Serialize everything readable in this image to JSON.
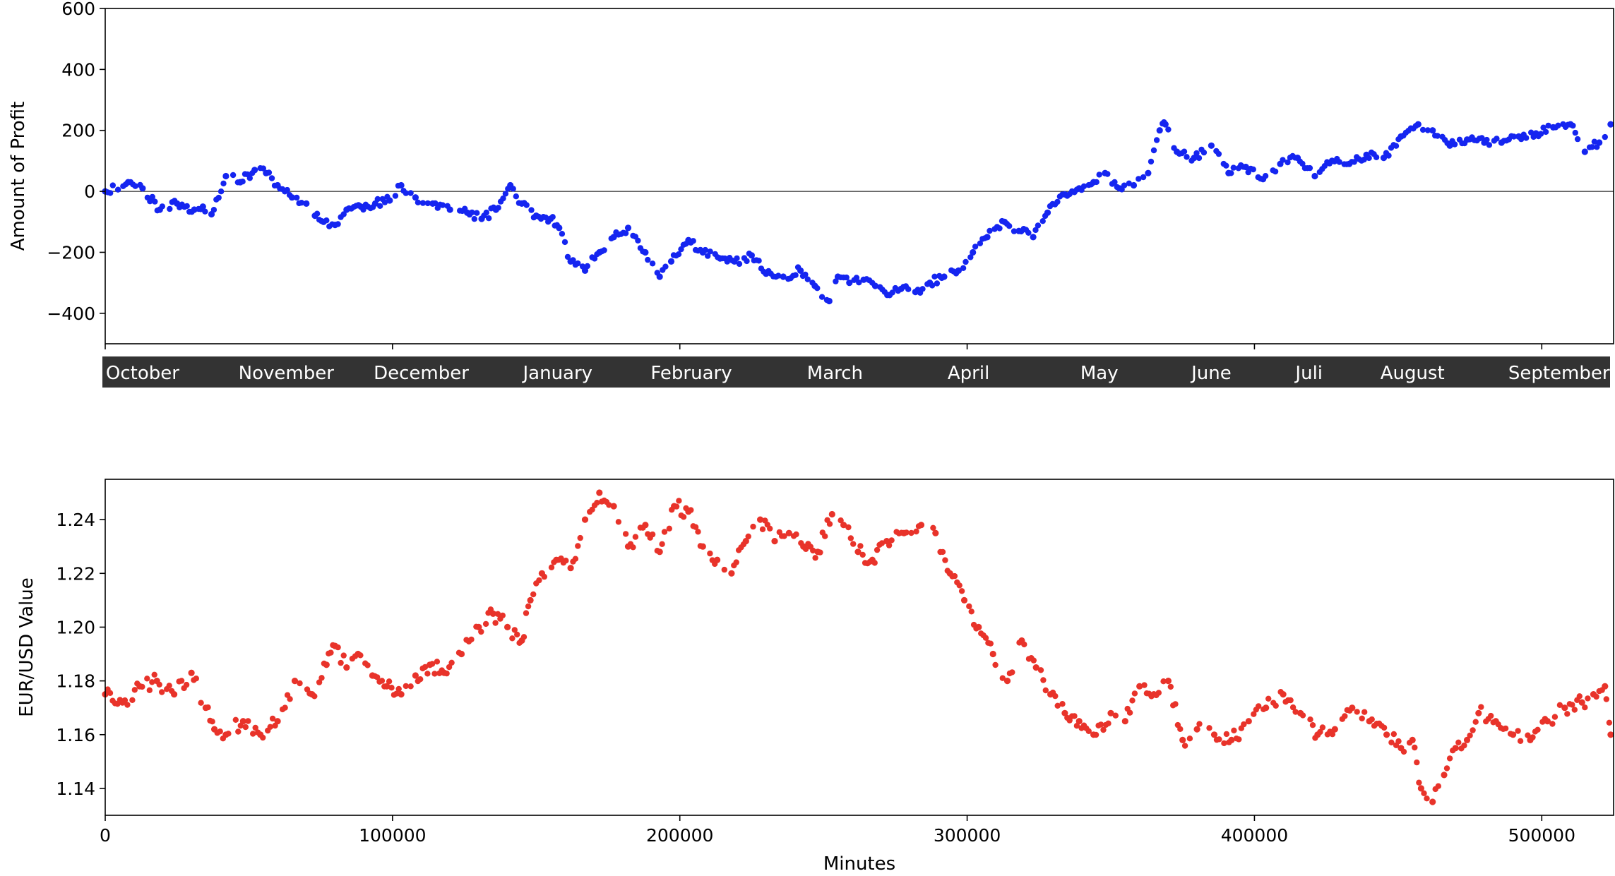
{
  "colors": {
    "profit": "#1525f0",
    "eurusd": "#e8332a",
    "month_band": "#333333",
    "axis": "#000000"
  },
  "chart_data": [
    {
      "type": "scatter",
      "title": "",
      "xlabel": "",
      "ylabel": "Amount of Profit",
      "xlim": [
        0,
        525000
      ],
      "ylim": [
        -500,
        600
      ],
      "yticks": [
        -400,
        -200,
        0,
        200,
        400,
        600
      ],
      "ytick_labels": [
        "−400",
        "−200",
        "0",
        "200",
        "400",
        "600"
      ],
      "xticks": [
        0,
        100000,
        200000,
        300000,
        400000,
        500000
      ],
      "zero_line": true,
      "grid": false,
      "month_labels": [
        "October",
        "November",
        "December",
        "January",
        "February",
        "March",
        "April",
        "May",
        "June",
        "Juli",
        "August",
        "September"
      ],
      "month_label_positions": [
        13000,
        63000,
        110000,
        157500,
        204000,
        254000,
        300500,
        346000,
        385000,
        419000,
        455000,
        506000
      ],
      "series": [
        {
          "color": "#1525f0",
          "x": [
            0,
            8000,
            13000,
            19000,
            25000,
            31000,
            34000,
            37000,
            42000,
            47000,
            52000,
            56000,
            60000,
            65000,
            70000,
            73000,
            76000,
            80000,
            84000,
            89000,
            94000,
            99000,
            103000,
            108000,
            114000,
            120000,
            126000,
            131000,
            136000,
            141000,
            145000,
            150000,
            155000,
            158000,
            162000,
            167000,
            172000,
            177000,
            182000,
            188000,
            193000,
            197000,
            203000,
            208000,
            214000,
            219000,
            225000,
            230000,
            236000,
            242000,
            247000,
            252000,
            255000,
            259000,
            264000,
            268000,
            273000,
            277000,
            282000,
            287000,
            292000,
            297000,
            302000,
            307000,
            313000,
            318000,
            323000,
            328000,
            334000,
            339000,
            344000,
            348000,
            353000,
            358000,
            363000,
            367000,
            369000,
            373000,
            379000,
            385000,
            391000,
            397000,
            403000,
            409000,
            415000,
            421000,
            427000,
            433000,
            439000,
            445000,
            451000,
            457000,
            462000,
            468000,
            474000,
            480000,
            486000,
            492000,
            498000,
            504000,
            510000,
            515000,
            520000,
            524000
          ],
          "y": [
            0,
            30,
            10,
            -60,
            -40,
            -60,
            -50,
            -75,
            50,
            30,
            70,
            60,
            20,
            -20,
            -40,
            -80,
            -100,
            -110,
            -60,
            -50,
            -40,
            -30,
            20,
            -20,
            -40,
            -60,
            -70,
            -90,
            -60,
            20,
            -40,
            -80,
            -90,
            -120,
            -230,
            -260,
            -200,
            -150,
            -120,
            -200,
            -280,
            -230,
            -160,
            -200,
            -220,
            -230,
            -210,
            -270,
            -280,
            -260,
            -310,
            -360,
            -280,
            -300,
            -290,
            -310,
            -340,
            -320,
            -330,
            -300,
            -280,
            -260,
            -200,
            -150,
            -100,
            -130,
            -150,
            -70,
            -10,
            10,
            30,
            60,
            10,
            20,
            60,
            200,
            220,
            130,
            110,
            150,
            60,
            80,
            40,
            90,
            110,
            50,
            100,
            90,
            120,
            110,
            180,
            220,
            200,
            150,
            170,
            160,
            160,
            180,
            190,
            210,
            220,
            130,
            160,
            220
          ]
        }
      ]
    },
    {
      "type": "scatter",
      "title": "",
      "xlabel": "Minutes",
      "ylabel": "EUR/USD Value",
      "xlim": [
        0,
        525000
      ],
      "ylim": [
        1.13,
        1.255
      ],
      "yticks": [
        1.14,
        1.16,
        1.18,
        1.2,
        1.22,
        1.24
      ],
      "ytick_labels": [
        "1.14",
        "1.16",
        "1.18",
        "1.20",
        "1.22",
        "1.24"
      ],
      "xticks": [
        0,
        100000,
        200000,
        300000,
        400000,
        500000
      ],
      "xtick_labels": [
        "0",
        "100000",
        "200000",
        "300000",
        "400000",
        "500000"
      ],
      "grid": false,
      "series": [
        {
          "color": "#e8332a",
          "x": [
            0,
            6000,
            12000,
            18000,
            24000,
            30000,
            35000,
            38000,
            42000,
            48000,
            54000,
            60000,
            66000,
            72000,
            77000,
            80000,
            84000,
            88000,
            93000,
            98000,
            103000,
            108000,
            113000,
            118000,
            124000,
            130000,
            135000,
            140000,
            145000,
            148000,
            152000,
            157000,
            162000,
            167000,
            172000,
            177000,
            182000,
            188000,
            193000,
            198000,
            203000,
            208000,
            213000,
            218000,
            223000,
            228000,
            233000,
            238000,
            243000,
            248000,
            253000,
            257000,
            262000,
            267000,
            272000,
            278000,
            284000,
            289000,
            294000,
            299000,
            304000,
            309000,
            314000,
            319000,
            324000,
            329000,
            334000,
            339000,
            344000,
            350000,
            355000,
            360000,
            365000,
            370000,
            375000,
            380000,
            386000,
            392000,
            398000,
            404000,
            410000,
            416000,
            422000,
            428000,
            434000,
            440000,
            446000,
            451000,
            455000,
            458000,
            462000,
            466000,
            470000,
            474000,
            478000,
            484000,
            490000,
            496000,
            502000,
            508000,
            514000,
            518000,
            522000,
            524000
          ],
          "y": [
            1.175,
            1.172,
            1.178,
            1.18,
            1.175,
            1.183,
            1.17,
            1.162,
            1.16,
            1.165,
            1.16,
            1.165,
            1.18,
            1.175,
            1.186,
            1.193,
            1.185,
            1.19,
            1.182,
            1.178,
            1.175,
            1.182,
            1.186,
            1.183,
            1.19,
            1.2,
            1.205,
            1.2,
            1.195,
            1.21,
            1.22,
            1.225,
            1.222,
            1.24,
            1.25,
            1.245,
            1.23,
            1.238,
            1.228,
            1.245,
            1.243,
            1.23,
            1.225,
            1.22,
            1.232,
            1.24,
            1.232,
            1.235,
            1.23,
            1.228,
            1.242,
            1.238,
            1.228,
            1.225,
            1.232,
            1.235,
            1.238,
            1.235,
            1.22,
            1.21,
            1.2,
            1.19,
            1.18,
            1.195,
            1.185,
            1.175,
            1.168,
            1.165,
            1.16,
            1.168,
            1.165,
            1.178,
            1.175,
            1.18,
            1.158,
            1.162,
            1.16,
            1.158,
            1.165,
            1.17,
            1.175,
            1.168,
            1.16,
            1.162,
            1.17,
            1.165,
            1.16,
            1.155,
            1.158,
            1.14,
            1.135,
            1.145,
            1.155,
            1.158,
            1.168,
            1.165,
            1.16,
            1.158,
            1.165,
            1.17,
            1.172,
            1.175,
            1.178,
            1.16
          ]
        }
      ]
    }
  ]
}
